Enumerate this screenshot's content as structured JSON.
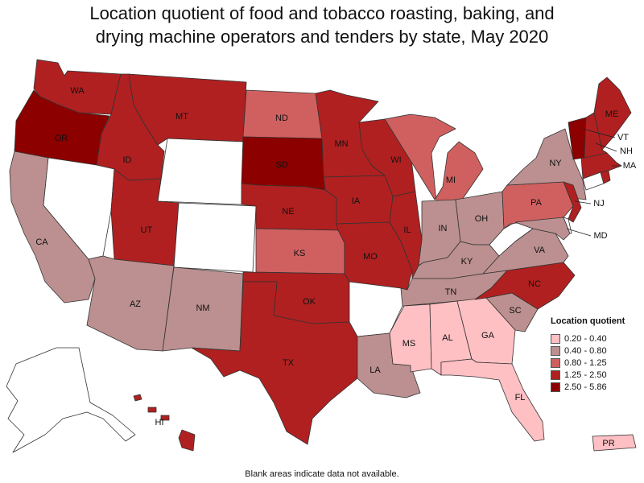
{
  "title_line1": "Location quotient of food and tobacco roasting, baking, and",
  "title_line2": "drying machine operators and tenders by state, May 2020",
  "note": "Blank areas indicate data not available.",
  "legend": {
    "title": "Location quotient",
    "bins": [
      {
        "label": "0.20 - 0.40",
        "color": "#ffc0c4"
      },
      {
        "label": "0.40 - 0.80",
        "color": "#bc9090"
      },
      {
        "label": "0.80 - 1.25",
        "color": "#d06060"
      },
      {
        "label": "1.25 - 2.50",
        "color": "#b02020"
      },
      {
        "label": "2.50 - 5.86",
        "color": "#8c0000"
      }
    ]
  },
  "no_data_color": "#ffffff",
  "states": {
    "WA": {
      "label": "WA",
      "bin": 3
    },
    "OR": {
      "label": "OR",
      "bin": 4
    },
    "CA": {
      "label": "CA",
      "bin": 1
    },
    "ID": {
      "label": "ID",
      "bin": 3
    },
    "NV": {
      "label": "",
      "bin": null
    },
    "MT": {
      "label": "MT",
      "bin": 3
    },
    "WY": {
      "label": "",
      "bin": null
    },
    "UT": {
      "label": "UT",
      "bin": 3
    },
    "CO": {
      "label": "",
      "bin": null
    },
    "AZ": {
      "label": "AZ",
      "bin": 1
    },
    "NM": {
      "label": "NM",
      "bin": 1
    },
    "ND": {
      "label": "ND",
      "bin": 2
    },
    "SD": {
      "label": "SD",
      "bin": 4
    },
    "NE": {
      "label": "NE",
      "bin": 3
    },
    "KS": {
      "label": "KS",
      "bin": 2
    },
    "OK": {
      "label": "OK",
      "bin": 3
    },
    "TX": {
      "label": "TX",
      "bin": 3
    },
    "MN": {
      "label": "MN",
      "bin": 3
    },
    "IA": {
      "label": "IA",
      "bin": 3
    },
    "MO": {
      "label": "MO",
      "bin": 3
    },
    "AR": {
      "label": "",
      "bin": null
    },
    "LA": {
      "label": "LA",
      "bin": 1
    },
    "WI": {
      "label": "WI",
      "bin": 3
    },
    "IL": {
      "label": "IL",
      "bin": 3
    },
    "MI": {
      "label": "MI",
      "bin": 2
    },
    "IN": {
      "label": "IN",
      "bin": 1
    },
    "OH": {
      "label": "OH",
      "bin": 1
    },
    "KY": {
      "label": "KY",
      "bin": 1
    },
    "TN": {
      "label": "TN",
      "bin": 1
    },
    "MS": {
      "label": "MS",
      "bin": 0
    },
    "AL": {
      "label": "AL",
      "bin": 0
    },
    "GA": {
      "label": "GA",
      "bin": 0
    },
    "FL": {
      "label": "FL",
      "bin": 0
    },
    "SC": {
      "label": "SC",
      "bin": 1
    },
    "NC": {
      "label": "NC",
      "bin": 3
    },
    "VA": {
      "label": "VA",
      "bin": 1
    },
    "WV": {
      "label": "",
      "bin": null
    },
    "PA": {
      "label": "PA",
      "bin": 2
    },
    "NY": {
      "label": "NY",
      "bin": 1
    },
    "NJ": {
      "label": "NJ",
      "bin": 3
    },
    "MD": {
      "label": "MD",
      "bin": 1
    },
    "DE": {
      "label": "",
      "bin": null
    },
    "CT": {
      "label": "",
      "bin": null
    },
    "RI": {
      "label": "",
      "bin": 3
    },
    "MA": {
      "label": "MA",
      "bin": 3
    },
    "VT": {
      "label": "VT",
      "bin": 4
    },
    "NH": {
      "label": "NH",
      "bin": 3
    },
    "ME": {
      "label": "ME",
      "bin": 3
    },
    "AK": {
      "label": "",
      "bin": null
    },
    "HI": {
      "label": "HI",
      "bin": 3
    },
    "PR": {
      "label": "PR",
      "bin": 0
    }
  }
}
